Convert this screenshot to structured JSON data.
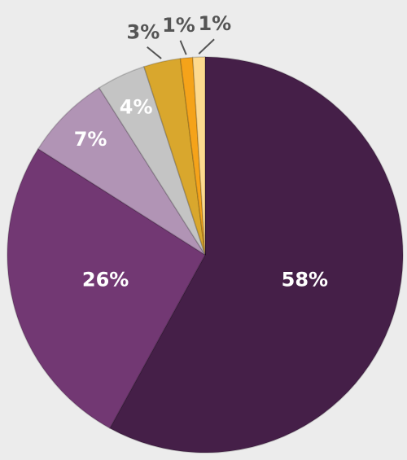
{
  "chart_data": {
    "type": "pie",
    "values": [
      58,
      26,
      7,
      4,
      3,
      1,
      1
    ],
    "value_labels": [
      "58%",
      "26%",
      "7%",
      "4%",
      "3%",
      "1%",
      "1%"
    ],
    "colors": [
      "#451f48",
      "#723873",
      "#b194b5",
      "#c4c4c4",
      "#d9a72d",
      "#f5a31a",
      "#fdd98e"
    ]
  }
}
